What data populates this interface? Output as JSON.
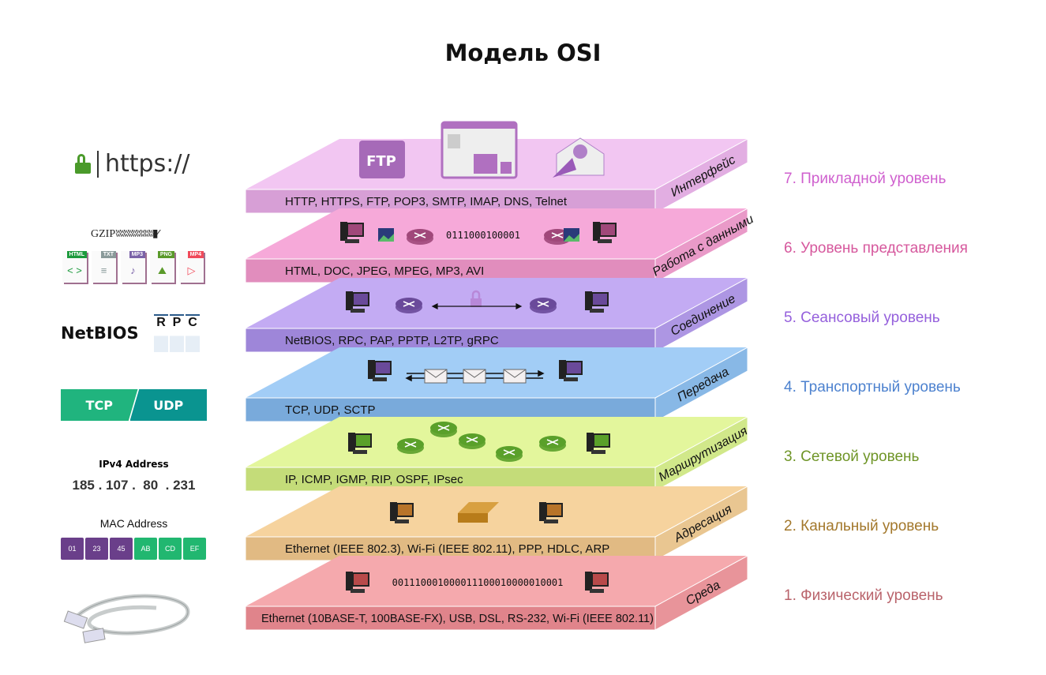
{
  "title": "Модель OSI",
  "layers": [
    {
      "number": 7,
      "name": "7. Прикладной уровень",
      "side_label": "Интерфейс",
      "protocols": "HTTP, HTTPS, FTP, POP3, SMTP, IMAP, DNS, Telnet",
      "icons": [
        "ftp-folder-icon",
        "browser-window-icon",
        "email-icon"
      ],
      "colors": {
        "top": "#f2c6f2",
        "front": "#d79fd6",
        "side": "#e2aee2",
        "label": "#cf5fce"
      }
    },
    {
      "number": 6,
      "name": "6. Уровень представления",
      "side_label": "Работа с данными",
      "protocols": "HTML, DOC, JPEG, MPEG, MP3, AVI",
      "bits": "0111000100001",
      "icons": [
        "computer-icon",
        "image-icon",
        "router-icon",
        "router-icon",
        "image-icon",
        "computer-icon"
      ],
      "colors": {
        "top": "#f6a9d9",
        "front": "#e18dbd",
        "side": "#e99ac8",
        "label": "#d6589d"
      }
    },
    {
      "number": 5,
      "name": "5. Сеансовый уровень",
      "side_label": "Соединение",
      "protocols": "NetBIOS, RPC, PAP, PPTP, L2TP, gRPC",
      "icons": [
        "computer-icon",
        "router-icon",
        "lock-icon",
        "router-icon",
        "computer-icon"
      ],
      "colors": {
        "top": "#c3abf3",
        "front": "#9e86d9",
        "side": "#ad96e3",
        "label": "#9560dc"
      }
    },
    {
      "number": 4,
      "name": "4. Транспортный уровень",
      "side_label": "Передача",
      "protocols": "TCP, UDP, SCTP",
      "icons": [
        "computer-icon",
        "envelope-icon",
        "envelope-icon",
        "envelope-icon",
        "computer-icon"
      ],
      "colors": {
        "top": "#a2cdf6",
        "front": "#79aadb",
        "side": "#88b8e6",
        "label": "#4d82cf"
      }
    },
    {
      "number": 3,
      "name": "3. Сетевой уровень",
      "side_label": "Маршрутизация",
      "protocols": "IP, ICMP, IGMP, RIP, OSPF, IPsec",
      "icons": [
        "computer-icon",
        "router-icon",
        "router-icon",
        "router-icon",
        "router-icon",
        "router-icon",
        "computer-icon"
      ],
      "colors": {
        "top": "#e3f69c",
        "front": "#c4dc79",
        "side": "#d1e88a",
        "label": "#6f9527"
      }
    },
    {
      "number": 2,
      "name": "2. Канальный уровень",
      "side_label": "Адресация",
      "protocols": "Ethernet (IEEE 802.3), Wi-Fi (IEEE 802.11), PPP, HDLC, ARP",
      "icons": [
        "computer-icon",
        "switch-icon",
        "computer-icon"
      ],
      "colors": {
        "top": "#f6d39e",
        "front": "#e1ba83",
        "side": "#e9c691",
        "label": "#a3782c"
      }
    },
    {
      "number": 1,
      "name": "1. Физический уровень",
      "side_label": "Среда",
      "protocols": "Ethernet (10BASE-T, 100BASE-FX), USB, DSL, RS-232, Wi-Fi (IEEE 802.11)",
      "bits": "001110001000011100010000010001",
      "icons": [
        "computer-icon",
        "computer-icon"
      ],
      "colors": {
        "top": "#f5a9ad",
        "front": "#e0848b",
        "side": "#e8949a",
        "label": "#b9636b"
      }
    }
  ],
  "left": {
    "https": "https://",
    "gzip": "GZIP",
    "files": [
      {
        "tag": "HTML",
        "glyph": "< >",
        "color": "#1c9a3c"
      },
      {
        "tag": "TXT",
        "glyph": "≡",
        "color": "#8a9a9a"
      },
      {
        "tag": "MP3",
        "glyph": "♪",
        "color": "#7a62a8"
      },
      {
        "tag": "PNG",
        "glyph": "⛰",
        "color": "#5a9a2a"
      },
      {
        "tag": "MP4",
        "glyph": "▷",
        "color": "#f04a5a"
      }
    ],
    "netbios": "NetBIOS",
    "rpc": [
      "R",
      "P",
      "C"
    ],
    "tcp": "TCP",
    "udp": "UDP",
    "ipv4_label": "IPv4 Address",
    "ipv4": "185 . 107 .  80  . 231",
    "mac_label": "MAC Address",
    "mac": [
      {
        "v": "01",
        "color": "#6a3f8a"
      },
      {
        "v": "23",
        "color": "#6a3f8a"
      },
      {
        "v": "45",
        "color": "#6a3f8a"
      },
      {
        "v": "AB",
        "color": "#21b770"
      },
      {
        "v": "CD",
        "color": "#21b770"
      },
      {
        "v": "EF",
        "color": "#21b770"
      }
    ]
  }
}
